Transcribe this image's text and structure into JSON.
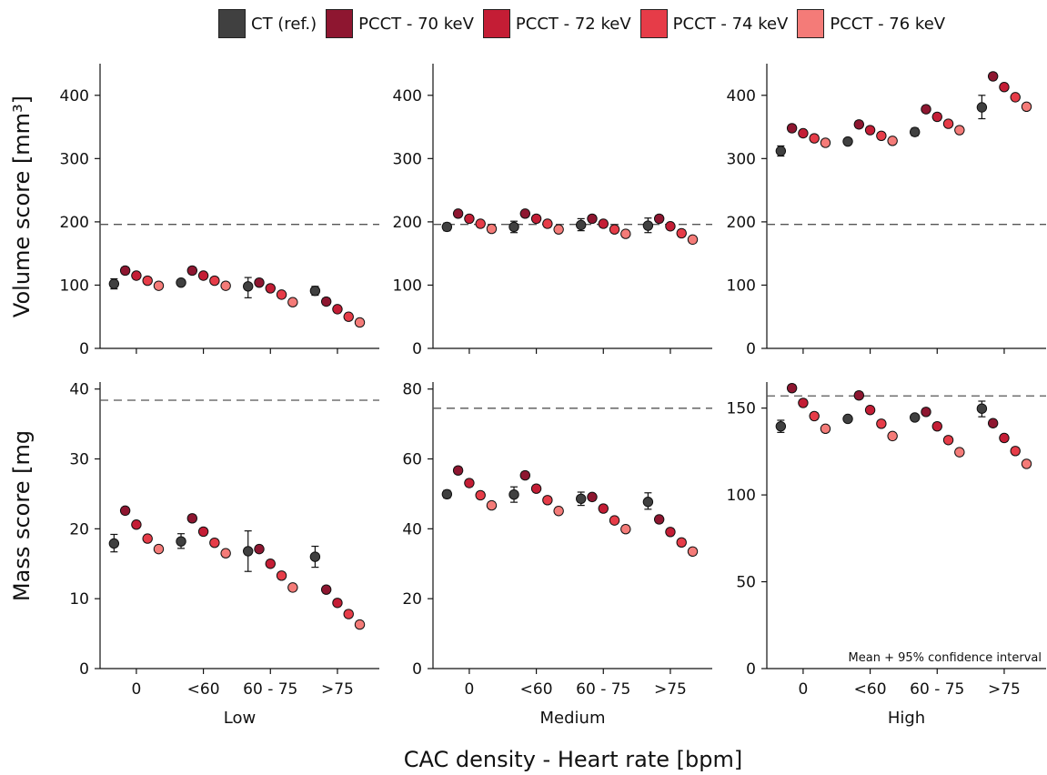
{
  "legend": [
    {
      "label": "CT (ref.)",
      "color": "#404040"
    },
    {
      "label": "PCCT - 70 keV",
      "color": "#8e1630"
    },
    {
      "label": "PCCT - 72 keV",
      "color": "#c41d35"
    },
    {
      "label": "PCCT - 74 keV",
      "color": "#e63c48"
    },
    {
      "label": "PCCT - 76 keV",
      "color": "#f47b78"
    }
  ],
  "x_axis_title": "CAC density - Heart rate [bpm]",
  "annotation": "Mean + 95% confidence interval",
  "chart_data": [
    {
      "type": "scatter",
      "row": "volume",
      "column": "Low",
      "ylabel": "Volume score [mm³]",
      "xlabel": "Low",
      "categories": [
        "0",
        "<60",
        "60 - 75",
        ">75"
      ],
      "ylim": [
        0,
        450
      ],
      "yticks": [
        0,
        100,
        200,
        300,
        400
      ],
      "reference_line": 196,
      "series": [
        {
          "name": "CT (ref.)",
          "values": [
            102,
            104,
            98,
            91
          ],
          "err_low": [
            94,
            100,
            80,
            84
          ],
          "err_high": [
            110,
            108,
            112,
            98
          ]
        },
        {
          "name": "PCCT - 70 keV",
          "values": [
            123,
            123,
            104,
            74
          ]
        },
        {
          "name": "PCCT - 72 keV",
          "values": [
            115,
            115,
            95,
            62
          ]
        },
        {
          "name": "PCCT - 74 keV",
          "values": [
            107,
            107,
            85,
            50
          ]
        },
        {
          "name": "PCCT - 76 keV",
          "values": [
            99,
            99,
            73,
            41
          ]
        }
      ]
    },
    {
      "type": "scatter",
      "row": "volume",
      "column": "Medium",
      "xlabel": "Medium",
      "categories": [
        "0",
        "<60",
        "60 - 75",
        ">75"
      ],
      "ylim": [
        0,
        450
      ],
      "yticks": [
        0,
        100,
        200,
        300,
        400
      ],
      "reference_line": 196,
      "series": [
        {
          "name": "CT (ref.)",
          "values": [
            192,
            192,
            195,
            194
          ],
          "err_low": [
            186,
            183,
            186,
            183
          ],
          "err_high": [
            198,
            201,
            205,
            206
          ]
        },
        {
          "name": "PCCT - 70 keV",
          "values": [
            213,
            213,
            205,
            205
          ]
        },
        {
          "name": "PCCT - 72 keV",
          "values": [
            205,
            205,
            197,
            193
          ]
        },
        {
          "name": "PCCT - 74 keV",
          "values": [
            197,
            197,
            188,
            182
          ]
        },
        {
          "name": "PCCT - 76 keV",
          "values": [
            189,
            188,
            181,
            172
          ]
        }
      ]
    },
    {
      "type": "scatter",
      "row": "volume",
      "column": "High",
      "xlabel": "High",
      "categories": [
        "0",
        "<60",
        "60 - 75",
        ">75"
      ],
      "ylim": [
        0,
        450
      ],
      "yticks": [
        0,
        100,
        200,
        300,
        400
      ],
      "reference_line": 196,
      "series": [
        {
          "name": "CT (ref.)",
          "values": [
            312,
            327,
            342,
            381
          ],
          "err_low": [
            304,
            322,
            336,
            363
          ],
          "err_high": [
            320,
            332,
            348,
            400
          ]
        },
        {
          "name": "PCCT - 70 keV",
          "values": [
            348,
            354,
            378,
            430
          ]
        },
        {
          "name": "PCCT - 72 keV",
          "values": [
            340,
            345,
            366,
            413
          ]
        },
        {
          "name": "PCCT - 74 keV",
          "values": [
            332,
            336,
            355,
            397
          ]
        },
        {
          "name": "PCCT - 76 keV",
          "values": [
            325,
            328,
            345,
            382
          ]
        }
      ]
    },
    {
      "type": "scatter",
      "row": "mass",
      "column": "Low",
      "ylabel": "Mass score [mg",
      "xlabel": "Low",
      "categories": [
        "0",
        "<60",
        "60 - 75",
        ">75"
      ],
      "ylim": [
        0,
        41
      ],
      "yticks": [
        0,
        10,
        20,
        30,
        40
      ],
      "reference_line": 38.4,
      "series": [
        {
          "name": "CT (ref.)",
          "values": [
            17.9,
            18.2,
            16.8,
            16.0
          ],
          "err_low": [
            16.7,
            17.2,
            13.9,
            14.5
          ],
          "err_high": [
            19.2,
            19.3,
            19.7,
            17.5
          ]
        },
        {
          "name": "PCCT - 70 keV",
          "values": [
            22.6,
            21.5,
            17.1,
            11.3
          ]
        },
        {
          "name": "PCCT - 72 keV",
          "values": [
            20.6,
            19.6,
            15.0,
            9.4
          ]
        },
        {
          "name": "PCCT - 74 keV",
          "values": [
            18.6,
            18.0,
            13.3,
            7.8
          ]
        },
        {
          "name": "PCCT - 76 keV",
          "values": [
            17.1,
            16.5,
            11.6,
            6.3
          ]
        }
      ]
    },
    {
      "type": "scatter",
      "row": "mass",
      "column": "Medium",
      "xlabel": "Medium",
      "categories": [
        "0",
        "<60",
        "60 - 75",
        ">75"
      ],
      "ylim": [
        0,
        82
      ],
      "yticks": [
        0,
        20,
        40,
        60,
        80
      ],
      "reference_line": 74.5,
      "series": [
        {
          "name": "CT (ref.)",
          "values": [
            49.9,
            49.8,
            48.6,
            47.7
          ],
          "err_low": [
            48.8,
            47.6,
            46.7,
            45.6
          ],
          "err_high": [
            51.0,
            52.0,
            50.5,
            50.3
          ]
        },
        {
          "name": "PCCT - 70 keV",
          "values": [
            56.7,
            55.3,
            49.1,
            42.7
          ]
        },
        {
          "name": "PCCT - 72 keV",
          "values": [
            53.1,
            51.5,
            45.8,
            39.1
          ]
        },
        {
          "name": "PCCT - 74 keV",
          "values": [
            49.6,
            48.2,
            42.4,
            36.1
          ]
        },
        {
          "name": "PCCT - 76 keV",
          "values": [
            46.7,
            45.1,
            39.9,
            33.5
          ]
        }
      ]
    },
    {
      "type": "scatter",
      "row": "mass",
      "column": "High",
      "xlabel": "High",
      "categories": [
        "0",
        "<60",
        "60 - 75",
        ">75"
      ],
      "ylim": [
        0,
        165
      ],
      "yticks": [
        0,
        50,
        100,
        150
      ],
      "reference_line": 157,
      "series": [
        {
          "name": "CT (ref.)",
          "values": [
            139.5,
            143.8,
            144.6,
            149.7
          ],
          "err_low": [
            136,
            142,
            143,
            145
          ],
          "err_high": [
            143,
            145.5,
            146,
            154
          ]
        },
        {
          "name": "PCCT - 70 keV",
          "values": [
            161.5,
            157.3,
            147.8,
            141.3
          ]
        },
        {
          "name": "PCCT - 72 keV",
          "values": [
            153.0,
            148.9,
            139.5,
            132.8
          ]
        },
        {
          "name": "PCCT - 74 keV",
          "values": [
            145.4,
            141.0,
            131.6,
            125.3
          ]
        },
        {
          "name": "PCCT - 76 keV",
          "values": [
            138.1,
            133.9,
            124.6,
            117.9
          ]
        }
      ]
    }
  ]
}
